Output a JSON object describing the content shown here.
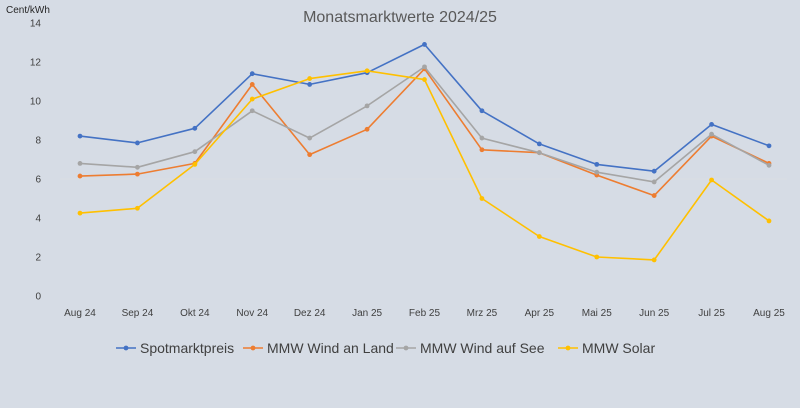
{
  "chart_data": {
    "type": "line",
    "title": "Monatsmarktwerte 2024/25",
    "ylabel": "Cent/kWh",
    "xlabel": "",
    "ylim": [
      0,
      14
    ],
    "yticks": [
      0,
      2,
      4,
      6,
      8,
      10,
      12,
      14
    ],
    "grid": false,
    "legend_position": "bottom",
    "categories": [
      "Aug 24",
      "Sep 24",
      "Okt 24",
      "Nov 24",
      "Dez 24",
      "Jan 25",
      "Feb 25",
      "Mrz 25",
      "Apr 25",
      "Mai 25",
      "Jun 25",
      "Jul 25",
      "Aug 25"
    ],
    "series": [
      {
        "name": "Spotmarktpreis",
        "color": "#4472c4",
        "values": [
          8.2,
          7.85,
          8.6,
          11.4,
          10.85,
          11.45,
          12.9,
          9.5,
          7.8,
          6.75,
          6.4,
          8.8,
          7.7
        ]
      },
      {
        "name": "MMW Wind an Land",
        "color": "#ed7d31",
        "values": [
          6.15,
          6.25,
          6.8,
          10.85,
          7.25,
          8.55,
          11.65,
          7.5,
          7.35,
          6.2,
          5.15,
          8.2,
          6.8
        ]
      },
      {
        "name": "MMW Wind auf See",
        "color": "#a5a5a5",
        "values": [
          6.8,
          6.6,
          7.4,
          9.5,
          8.1,
          9.75,
          11.75,
          8.1,
          7.35,
          6.35,
          5.85,
          8.3,
          6.7
        ]
      },
      {
        "name": "MMW Solar",
        "color": "#ffc000",
        "values": [
          4.25,
          4.5,
          6.75,
          10.1,
          11.15,
          11.55,
          11.1,
          5.0,
          3.05,
          2.0,
          1.85,
          5.95,
          3.85
        ]
      }
    ]
  }
}
